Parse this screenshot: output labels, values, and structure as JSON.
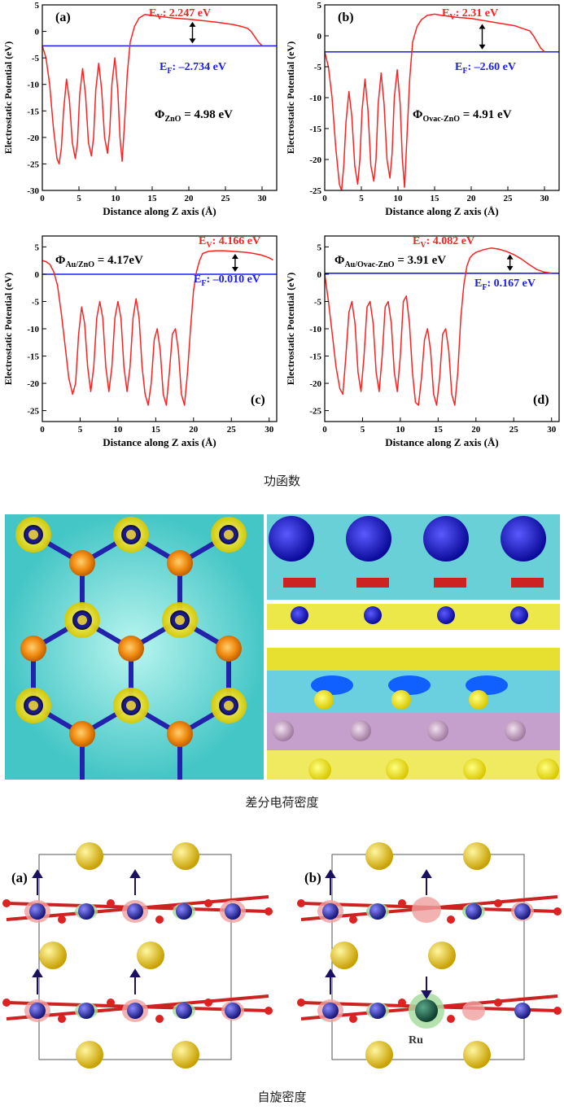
{
  "captions": {
    "work_function": "功函数",
    "charge_density": "差分电荷密度",
    "spin_density": "自旋密度"
  },
  "colors": {
    "curve": "#ff2020",
    "fermi": "#1a1aff",
    "ev_label": "#ff2020",
    "ef_label": "#1a1aff",
    "axis": "#000000"
  },
  "chart_data": [
    {
      "type": "line",
      "panel_label": "(a)",
      "xlabel": "Distance along Z axis (Å)",
      "ylabel": "Electrostatic Potential (eV)",
      "xlim": [
        0,
        32
      ],
      "ylim": [
        -30,
        5
      ],
      "xticks": [
        "0",
        "5",
        "10",
        "15",
        "20",
        "25",
        "30"
      ],
      "yticks": [
        "5",
        "0",
        "-5",
        "-10",
        "-15",
        "-20",
        "-25",
        "-30"
      ],
      "ev_text": "2.247 eV",
      "ef_text": "–2.734 eV",
      "phi_sub": "ZnO",
      "phi_text": " = 4.98 eV",
      "fermi_level": -2.734,
      "vacuum_level": 2.247,
      "series": [
        {
          "name": "potential",
          "x": [
            0,
            0.5,
            1,
            1.5,
            2,
            2.3,
            2.6,
            2.9,
            3.3,
            3.7,
            4.1,
            4.5,
            4.8,
            5.1,
            5.5,
            5.9,
            6.3,
            6.7,
            7.0,
            7.3,
            7.7,
            8.1,
            8.5,
            8.9,
            9.2,
            9.5,
            9.9,
            10.3,
            10.6,
            10.9,
            11.2,
            11.6,
            12,
            12.6,
            13.2,
            14,
            15,
            16,
            18,
            20,
            22,
            24,
            26,
            27,
            28,
            28.5,
            29,
            29.5,
            30
          ],
          "y": [
            -2.7,
            -5,
            -10,
            -18,
            -24,
            -25,
            -22,
            -15,
            -9,
            -13,
            -21,
            -24,
            -21,
            -12,
            -7,
            -12,
            -21,
            -23.5,
            -20,
            -11,
            -6,
            -11,
            -20,
            -23,
            -19,
            -10,
            -5,
            -11,
            -20,
            -24.5,
            -18,
            -8,
            -2,
            1,
            2.5,
            3.2,
            3.0,
            2.8,
            2.5,
            2.3,
            2.0,
            1.7,
            1.3,
            1.0,
            0.6,
            0.0,
            -1.0,
            -2.0,
            -2.7
          ]
        }
      ]
    },
    {
      "type": "line",
      "panel_label": "(b)",
      "xlabel": "Distance along Z axis (Å)",
      "ylabel": "Electrostatic Potential (eV)",
      "xlim": [
        0,
        32
      ],
      "ylim": [
        -25,
        5
      ],
      "xticks": [
        "0",
        "5",
        "10",
        "15",
        "20",
        "25",
        "30"
      ],
      "yticks": [
        "5",
        "0",
        "-5",
        "-10",
        "-15",
        "-20",
        "-25"
      ],
      "ev_text": "2.31 eV",
      "ef_text": "–2.60 eV",
      "phi_sub": "Ovac-ZnO",
      "phi_text": " = 4.91 eV",
      "fermi_level": -2.6,
      "vacuum_level": 2.31,
      "series": [
        {
          "name": "potential",
          "x": [
            0,
            0.5,
            1,
            1.5,
            2,
            2.3,
            2.6,
            2.9,
            3.3,
            3.7,
            4.1,
            4.5,
            4.8,
            5.1,
            5.5,
            5.9,
            6.3,
            6.7,
            7.0,
            7.3,
            7.7,
            8.1,
            8.5,
            8.9,
            9.2,
            9.5,
            9.9,
            10.3,
            10.6,
            10.9,
            11.2,
            11.6,
            12,
            12.6,
            13.2,
            14,
            15,
            16,
            18,
            20,
            22,
            24,
            26,
            27,
            28,
            28.5,
            29,
            29.5,
            30
          ],
          "y": [
            -2.6,
            -5,
            -10,
            -18,
            -24,
            -25,
            -21,
            -14,
            -9,
            -13,
            -21,
            -24,
            -20,
            -12,
            -7,
            -12,
            -21,
            -23.5,
            -20,
            -11,
            -6,
            -11,
            -20,
            -23,
            -19,
            -10,
            -5.5,
            -11,
            -20,
            -24.5,
            -17,
            -7,
            -1,
            1.5,
            2.6,
            3.3,
            3.5,
            3.3,
            3.0,
            2.8,
            2.4,
            2.0,
            1.6,
            1.2,
            0.8,
            0.0,
            -1.0,
            -2.0,
            -2.6
          ]
        }
      ]
    },
    {
      "type": "line",
      "panel_label": "(c)",
      "xlabel": "Distance along Z axis (Å)",
      "ylabel": "Electrostatic Potential (eV)",
      "xlim": [
        0,
        31
      ],
      "ylim": [
        -27,
        7
      ],
      "xticks": [
        "0",
        "5",
        "10",
        "15",
        "20",
        "25",
        "30"
      ],
      "yticks": [
        "5",
        "0",
        "-5",
        "-10",
        "-15",
        "-20",
        "-25"
      ],
      "ev_text": "4.166 eV",
      "ef_text": "–0.010 eV",
      "phi_sub": "Au/ZnO",
      "phi_text": " = 4.17eV",
      "fermi_level": -0.01,
      "vacuum_level": 4.166,
      "series": [
        {
          "name": "potential",
          "x": [
            0,
            0.5,
            1,
            1.5,
            2,
            2.5,
            3,
            3.5,
            4,
            4.4,
            4.8,
            5.2,
            5.6,
            6,
            6.4,
            6.8,
            7.2,
            7.6,
            8,
            8.4,
            8.8,
            9.2,
            9.6,
            10,
            10.4,
            10.8,
            11.2,
            11.6,
            12,
            12.4,
            12.8,
            13.2,
            13.6,
            14,
            14.4,
            14.8,
            15.2,
            15.6,
            16,
            16.4,
            16.8,
            17.2,
            17.6,
            18,
            18.4,
            18.8,
            19.2,
            19.6,
            20,
            20.4,
            20.8,
            21.2,
            22,
            23,
            24,
            25,
            26,
            27,
            28,
            29,
            30,
            30.5
          ],
          "y": [
            2.5,
            2.3,
            1.8,
            0.5,
            -2,
            -7,
            -13,
            -19,
            -22,
            -20,
            -11,
            -6,
            -9,
            -17,
            -21.5,
            -17,
            -8,
            -5,
            -8,
            -17,
            -21.5,
            -17,
            -8,
            -5,
            -8,
            -17,
            -21.5,
            -17,
            -8,
            -4.5,
            -8,
            -17,
            -22,
            -24,
            -20,
            -12,
            -10,
            -14,
            -22,
            -24,
            -18,
            -11,
            -10,
            -14,
            -22,
            -24,
            -18,
            -10,
            -3,
            0.5,
            2.5,
            3.8,
            4.2,
            4.3,
            4.3,
            4.2,
            4.1,
            4.0,
            3.8,
            3.5,
            3.0,
            2.6
          ]
        }
      ]
    },
    {
      "type": "line",
      "panel_label": "(d)",
      "xlabel": "Distance along Z axis (Å)",
      "ylabel": "Electrostatic Potential (eV)",
      "xlim": [
        0,
        31
      ],
      "ylim": [
        -27,
        7
      ],
      "xticks": [
        "0",
        "5",
        "10",
        "15",
        "20",
        "25",
        "30"
      ],
      "yticks": [
        "5",
        "0",
        "-5",
        "-10",
        "-15",
        "-20",
        "-25"
      ],
      "ev_text": "4.082 eV",
      "ef_text": "0.167 eV",
      "phi_sub": "Au/Ovac-ZnO",
      "phi_text": " = 3.91 eV",
      "fermi_level": 0.167,
      "vacuum_level": 4.082,
      "series": [
        {
          "name": "potential",
          "x": [
            0,
            0.5,
            1,
            1.5,
            2,
            2.4,
            2.8,
            3.2,
            3.6,
            4,
            4.4,
            4.8,
            5.2,
            5.6,
            6,
            6.4,
            6.8,
            7.2,
            7.6,
            8,
            8.4,
            8.8,
            9.2,
            9.6,
            10,
            10.4,
            10.8,
            11.2,
            11.6,
            12,
            12.4,
            12.8,
            13.2,
            13.6,
            14,
            14.4,
            14.8,
            15.2,
            15.6,
            16,
            16.4,
            16.8,
            17.2,
            17.6,
            18,
            18.4,
            18.8,
            19.2,
            19.6,
            20,
            21,
            22,
            23,
            24,
            25,
            26,
            27,
            28,
            29,
            30
          ],
          "y": [
            0.0,
            -5,
            -11,
            -17,
            -21,
            -22,
            -15,
            -7,
            -5,
            -9,
            -18,
            -21.5,
            -15,
            -6,
            -5,
            -9,
            -18,
            -21.5,
            -15,
            -6,
            -5,
            -9,
            -18,
            -21.5,
            -15,
            -5,
            -4,
            -9,
            -18,
            -23.5,
            -24,
            -19,
            -12,
            -10,
            -14,
            -22,
            -24,
            -19,
            -11,
            -10,
            -14,
            -22,
            -24,
            -18,
            -8,
            -2,
            1.5,
            3.0,
            3.6,
            4.0,
            4.5,
            4.8,
            4.6,
            4.2,
            3.6,
            2.8,
            1.8,
            0.9,
            0.4,
            0.2
          ]
        }
      ]
    }
  ]
}
